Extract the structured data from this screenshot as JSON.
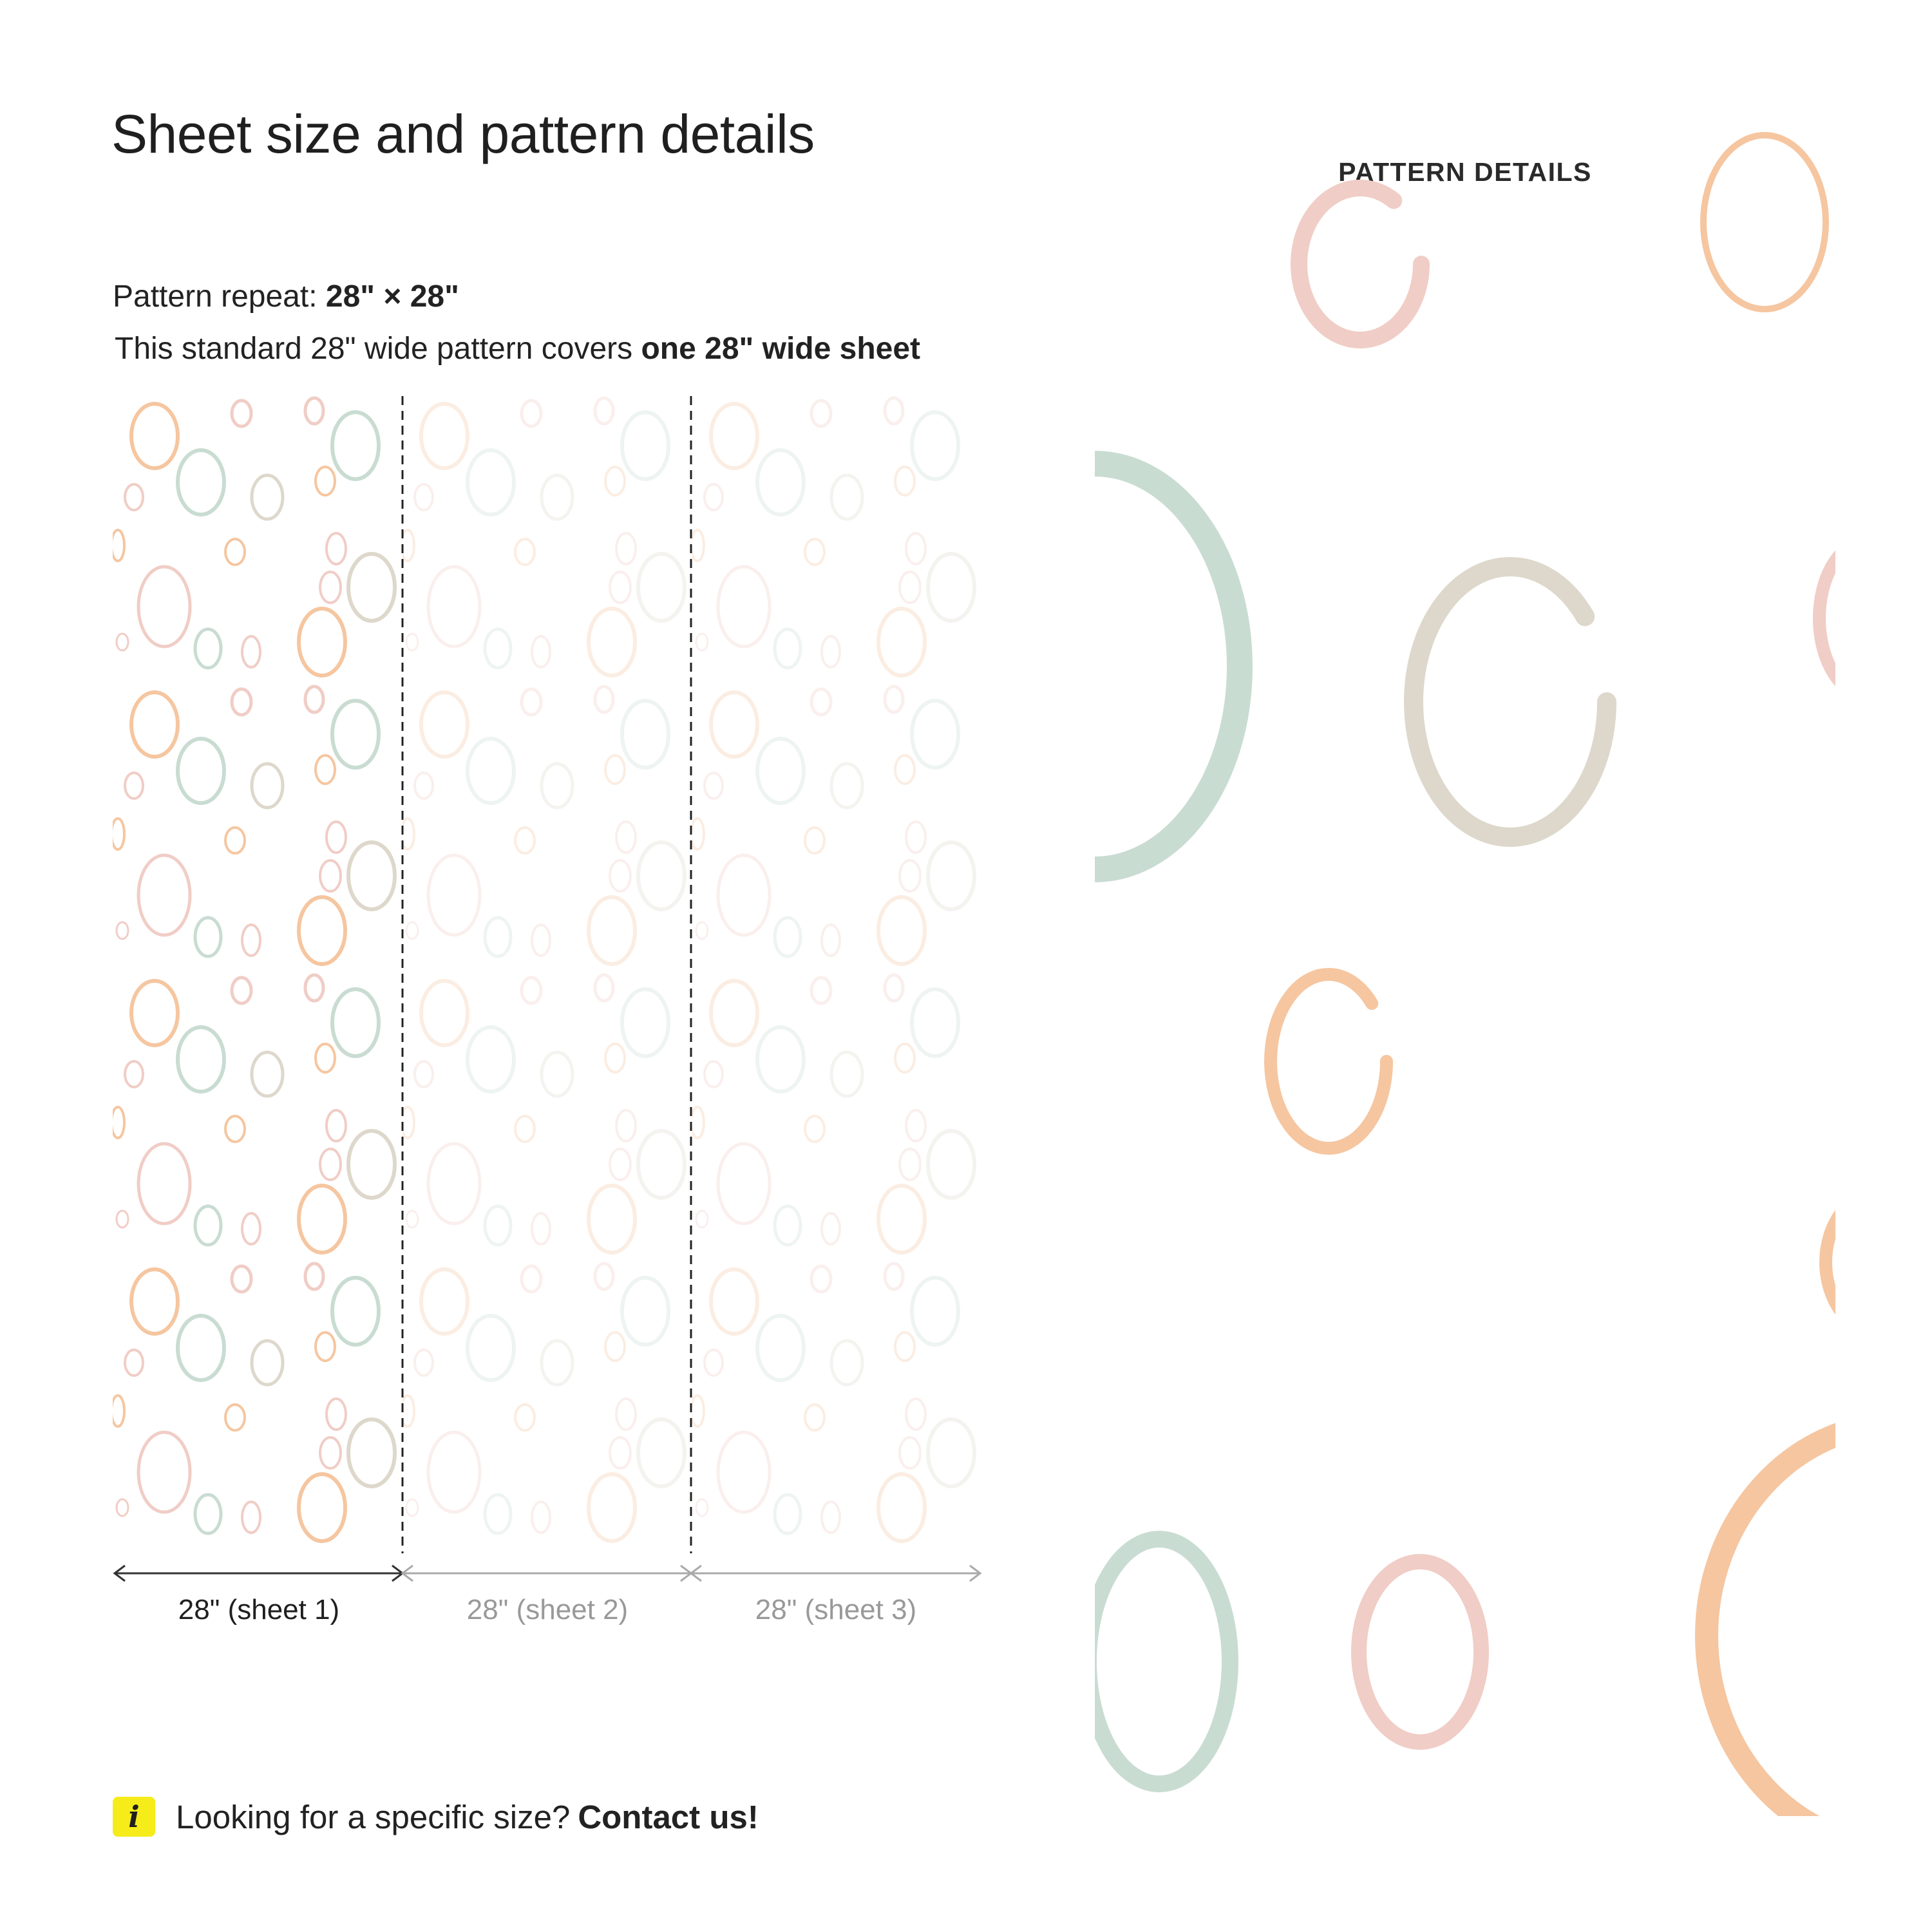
{
  "page": {
    "title": "Sheet size and pattern details"
  },
  "pattern_repeat": {
    "label": "Pattern repeat:",
    "value": "28\" × 28\""
  },
  "coverage": {
    "text": "This standard 28\" wide pattern covers",
    "emphasis": "one 28\" wide sheet"
  },
  "sheets": [
    {
      "label": "28\" (sheet 1)",
      "active": true
    },
    {
      "label": "28\" (sheet 2)",
      "active": false
    },
    {
      "label": "28\" (sheet 3)",
      "active": false
    }
  ],
  "contact": {
    "icon": "info-icon",
    "text": "Looking for a specific size?",
    "link": "Contact us!"
  },
  "pattern_details": {
    "heading": "PATTERN DETAILS"
  },
  "colors": {
    "peach": "#f5c6a0",
    "pink": "#f0cdc6",
    "sage": "#c9dcd2",
    "beige": "#ddd8cb",
    "badge": "#f6ec1a",
    "arrow_active": "#333333",
    "arrow_muted": "#aaaaaa"
  }
}
